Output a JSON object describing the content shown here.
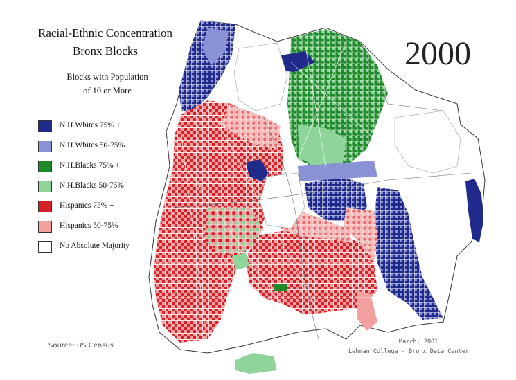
{
  "map": {
    "title_line1": "Racial-Ethnic Concentration",
    "title_line2": "Bronx Blocks",
    "subtitle_line1": "Blocks with Population",
    "subtitle_line2": "of 10 or More",
    "year": "2000",
    "legend": [
      {
        "label": "N.H.Whites 75%  +",
        "color": "#1f2a8a"
      },
      {
        "label": "N.H.Whites 50-75%",
        "color": "#8a92d6"
      },
      {
        "label": "N.H.Blacks 75%  +",
        "color": "#1e8a2a"
      },
      {
        "label": "N.H.Blacks 50-75%",
        "color": "#8fd49a"
      },
      {
        "label": "Hispanics 75%  +",
        "color": "#d61f26"
      },
      {
        "label": "Hispanics 50-75%",
        "color": "#f2a0a0"
      },
      {
        "label": "No Absolute Majority",
        "color": "#ffffff"
      }
    ],
    "source": "Source: US Census",
    "credit_date": "March, 2001",
    "credit_org": "Lehman College - Bronx Data Center"
  }
}
